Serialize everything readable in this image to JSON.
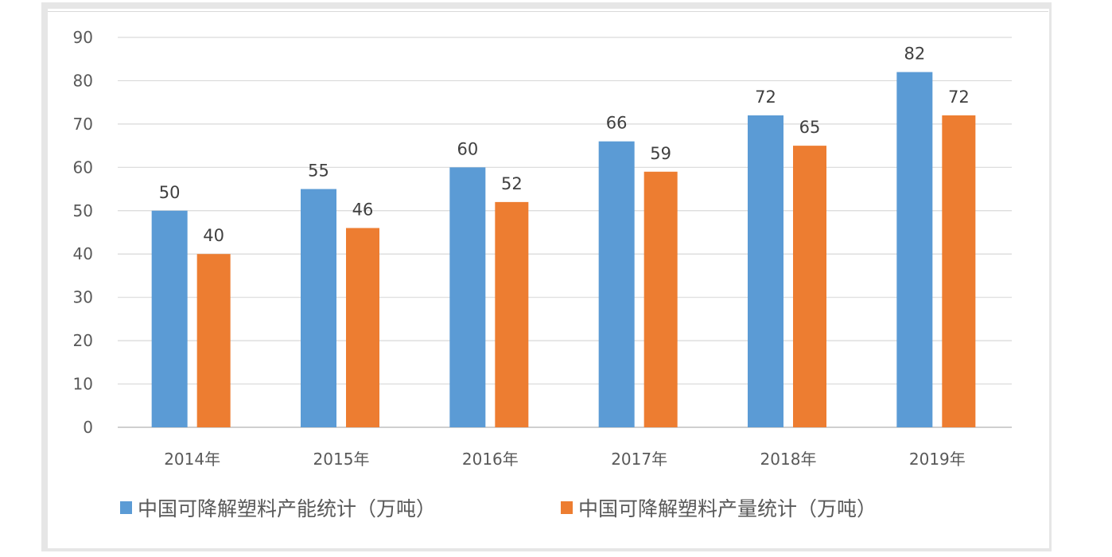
{
  "chart_data": {
    "type": "bar",
    "title": "",
    "xlabel": "",
    "ylabel": "",
    "ylim": [
      0,
      90
    ],
    "yticks": [
      0,
      10,
      20,
      30,
      40,
      50,
      60,
      70,
      80,
      90
    ],
    "grid": true,
    "legend_position": "bottom",
    "categories": [
      "2014年",
      "2015年",
      "2016年",
      "2017年",
      "2018年",
      "2019年"
    ],
    "series": [
      {
        "name": "中国可降解塑料产能统计（万吨）",
        "color": "#5b9bd5",
        "values": [
          50,
          55,
          60,
          66,
          72,
          82
        ]
      },
      {
        "name": "中国可降解塑料产量统计（万吨）",
        "color": "#ed7d31",
        "values": [
          40,
          46,
          52,
          59,
          65,
          72
        ]
      }
    ]
  }
}
